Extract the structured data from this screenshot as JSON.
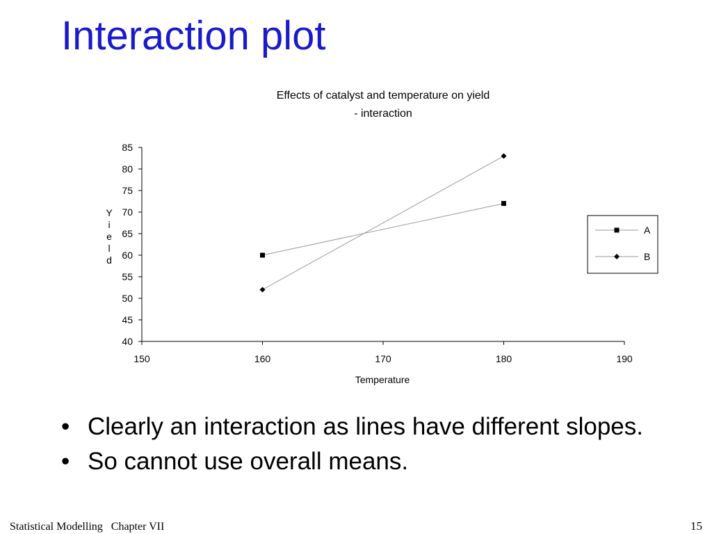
{
  "slide": {
    "title": "Interaction plot",
    "bullets": [
      "Clearly an interaction as lines have different slopes.",
      "So cannot use overall means."
    ],
    "footer": "Statistical Modelling   Chapter VII",
    "page_number": "15"
  },
  "chart_data": {
    "type": "line",
    "title_lines": [
      "Effects of catalyst and temperature on yield",
      "- interaction"
    ],
    "xlabel": "Temperature",
    "ylabel": "Yield",
    "xlim": [
      150,
      190
    ],
    "ylim": [
      40,
      85
    ],
    "xticks": [
      150,
      160,
      170,
      180,
      190
    ],
    "yticks": [
      40,
      45,
      50,
      55,
      60,
      65,
      70,
      75,
      80,
      85
    ],
    "grid": false,
    "legend": "right",
    "series": [
      {
        "name": "A",
        "marker": "square",
        "color": "#000000",
        "x": [
          160,
          180
        ],
        "y": [
          60,
          72
        ]
      },
      {
        "name": "B",
        "marker": "diamond",
        "color": "#000000",
        "x": [
          160,
          180
        ],
        "y": [
          52,
          83
        ]
      }
    ]
  }
}
